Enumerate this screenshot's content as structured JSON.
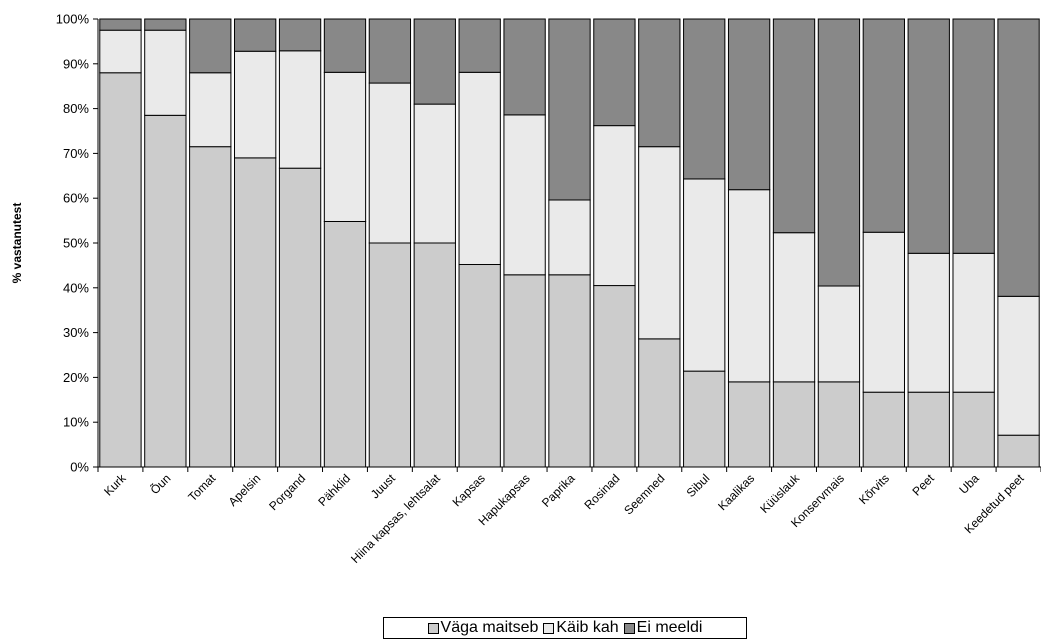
{
  "chart_data": {
    "type": "bar",
    "stacked": "percent",
    "ylabel": "% vastanutest",
    "xlabel": "",
    "ylim": [
      0,
      100
    ],
    "y_ticks": [
      "0%",
      "10%",
      "20%",
      "30%",
      "40%",
      "50%",
      "60%",
      "70%",
      "80%",
      "90%",
      "100%"
    ],
    "categories": [
      "Kurk",
      "Õun",
      "Tomat",
      "Apelsin",
      "Porgand",
      "Pähklid",
      "Juust",
      "Hiina kapsas, lehtsalat",
      "Kapsas",
      "Hapukapsas",
      "Paprika",
      "Rosinad",
      "Seemned",
      "Sibul",
      "Kaalikas",
      "Küüslauk",
      "Konservmais",
      "Kõrvits",
      "Peet",
      "Uba",
      "Keedetud peet"
    ],
    "series": [
      {
        "name": "Väga maitseb",
        "color": "#cccccc",
        "values": [
          88,
          78.5,
          71.5,
          69,
          66.7,
          54.8,
          50,
          50,
          45.2,
          42.9,
          42.9,
          40.5,
          28.6,
          21.4,
          19,
          19,
          19,
          16.7,
          16.7,
          16.7,
          7.1
        ]
      },
      {
        "name": "Käib kah",
        "color": "#eaeaea",
        "values": [
          9.5,
          19,
          16.5,
          23.8,
          26.2,
          33.3,
          35.7,
          31,
          42.9,
          35.7,
          16.7,
          35.7,
          42.9,
          42.9,
          42.9,
          33.3,
          21.4,
          35.7,
          31,
          31,
          31
        ]
      },
      {
        "name": "Ei meeldi",
        "color": "#888888",
        "values": [
          2.5,
          2.5,
          12,
          7.2,
          7.1,
          11.9,
          14.3,
          19,
          11.9,
          21.4,
          40.4,
          23.8,
          28.5,
          35.7,
          38.1,
          47.7,
          59.6,
          47.6,
          52.3,
          52.3,
          61.9
        ]
      }
    ],
    "legend_position": "bottom",
    "grid": false
  }
}
